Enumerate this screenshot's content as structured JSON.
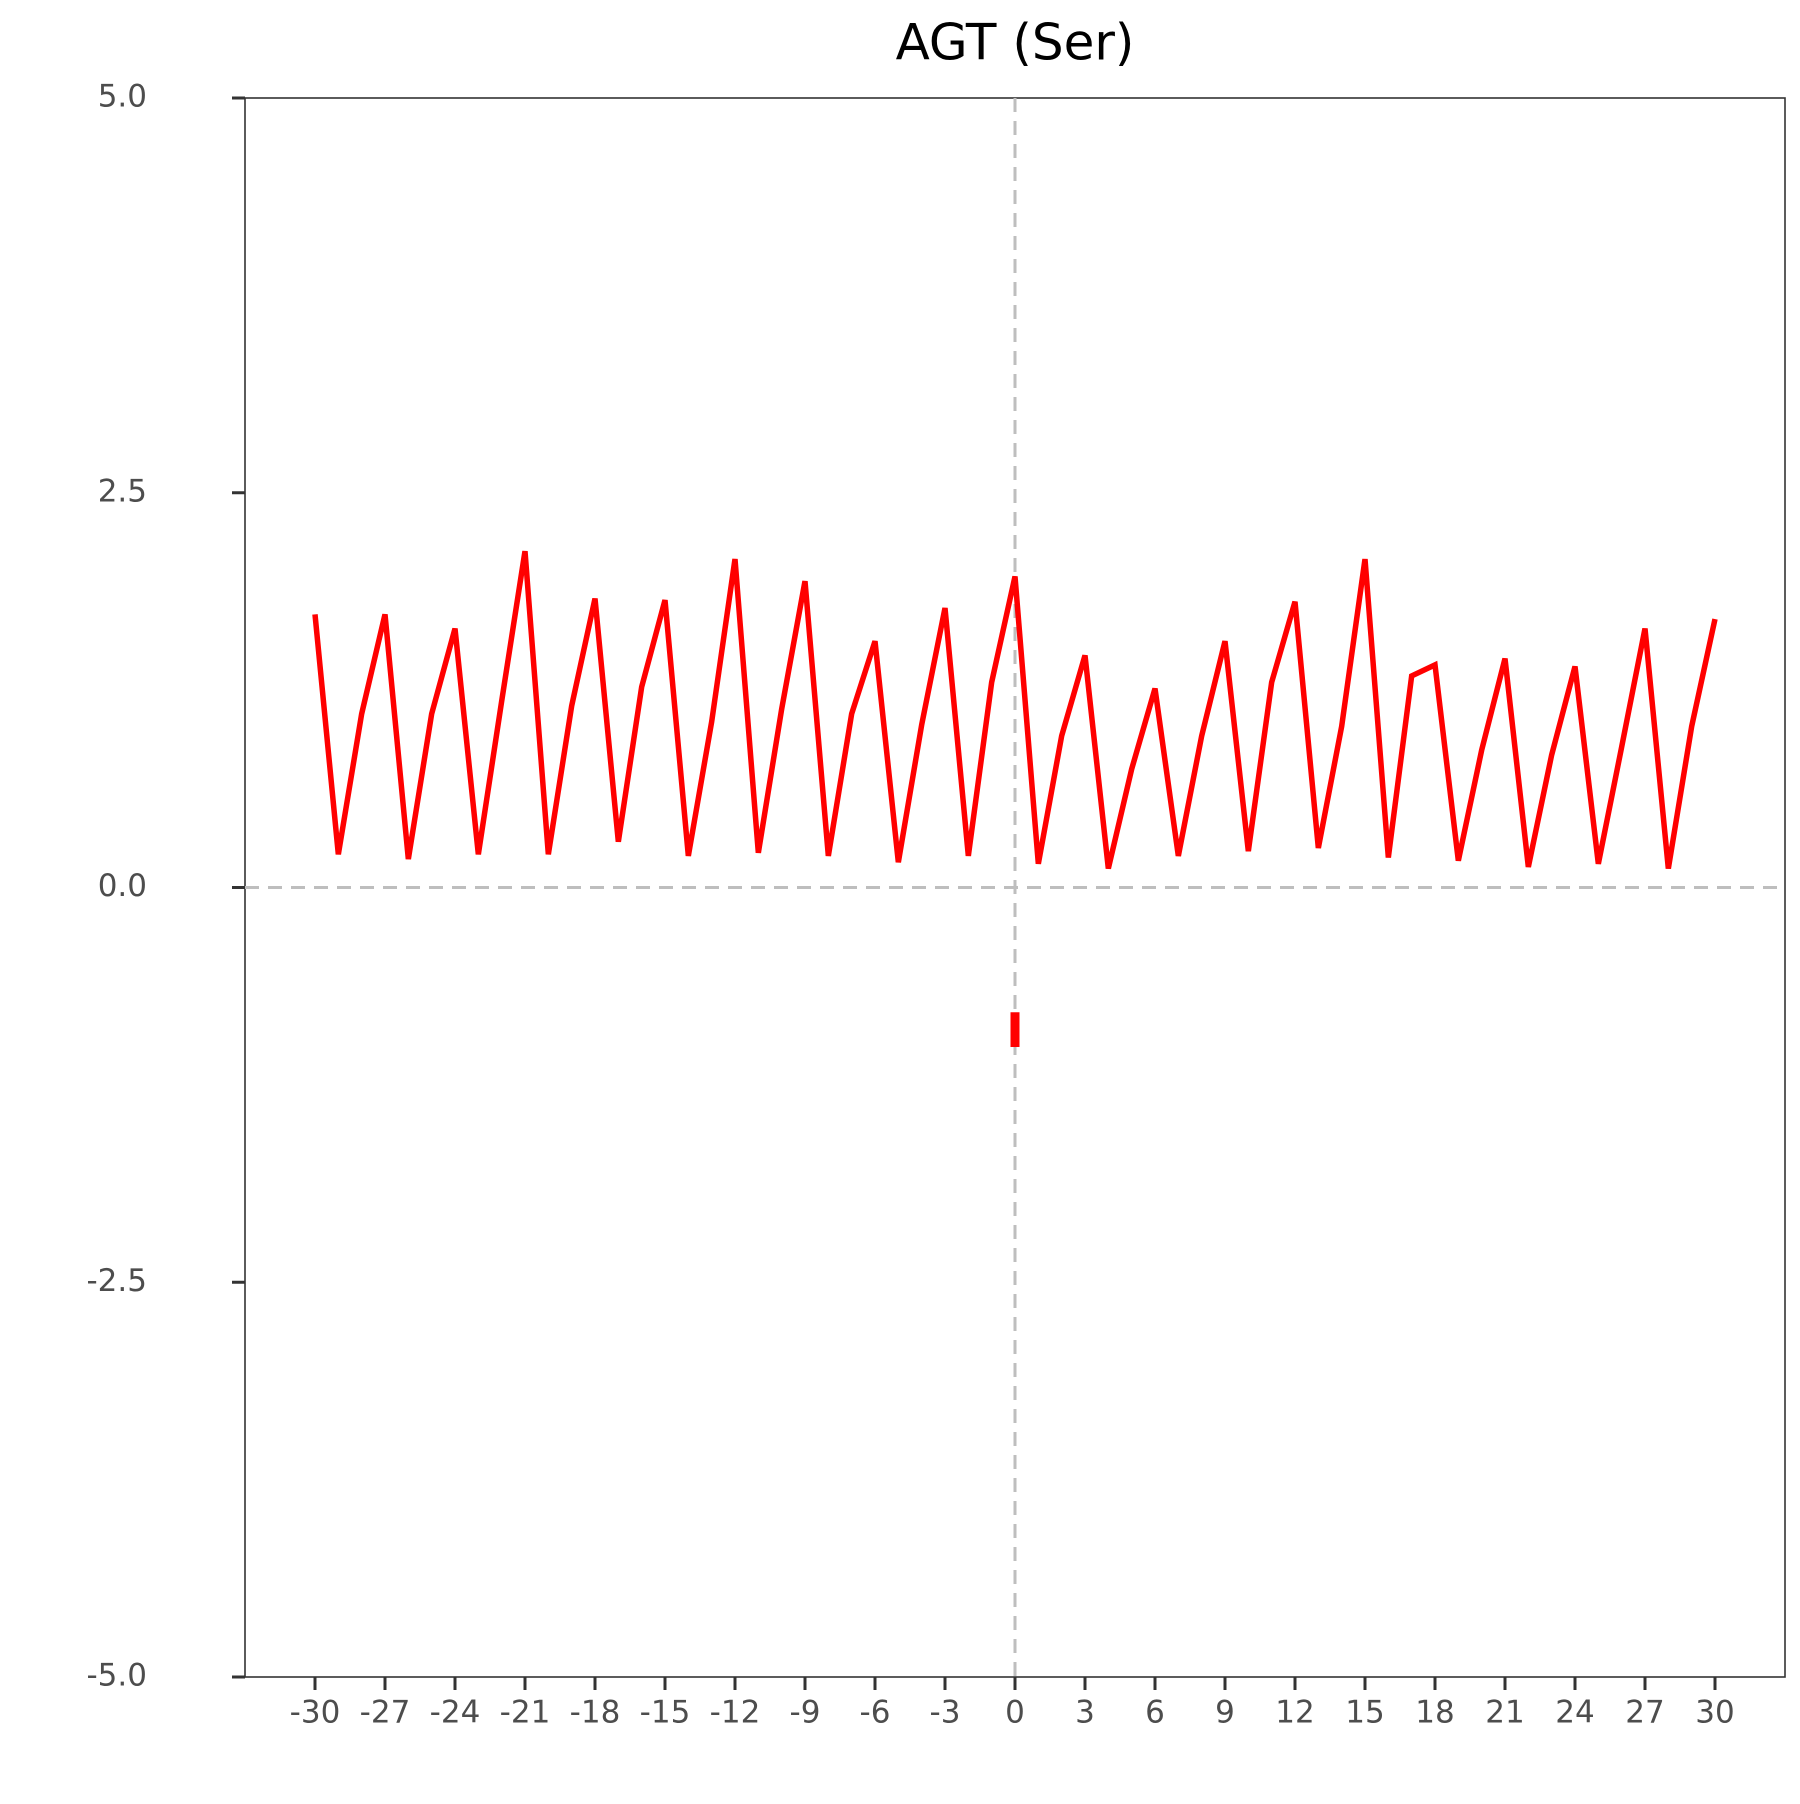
{
  "chart_data": {
    "type": "line",
    "title": "AGT (Ser)",
    "series": [
      {
        "color": "#ff0000",
        "x": [
          -30,
          -29,
          -28,
          -27,
          -26,
          -25,
          -24,
          -23,
          -22,
          -21,
          -20,
          -19,
          -18,
          -17,
          -16,
          -15,
          -14,
          -13,
          -12,
          -11,
          -10,
          -9,
          -8,
          -7,
          -6,
          -5,
          -4,
          -3,
          -2,
          -1,
          0,
          1,
          2,
          3,
          4,
          5,
          6,
          7,
          8,
          9,
          10,
          11,
          12,
          13,
          14,
          15,
          16,
          17,
          18,
          19,
          20,
          21,
          22,
          23,
          24,
          25,
          26,
          27,
          28,
          29,
          30
        ],
        "values": [
          1.73,
          0.21,
          1.1,
          1.73,
          0.18,
          1.1,
          1.64,
          0.21,
          1.18,
          2.13,
          0.21,
          1.15,
          1.83,
          0.29,
          1.27,
          1.82,
          0.2,
          1.05,
          2.08,
          0.22,
          1.13,
          1.94,
          0.2,
          1.1,
          1.56,
          0.16,
          1.03,
          1.77,
          0.2,
          1.3,
          1.97,
          0.15,
          0.96,
          1.47,
          0.12,
          0.75,
          1.26,
          0.2,
          0.96,
          1.56,
          0.23,
          1.3,
          1.81,
          0.25,
          1.02,
          2.08,
          0.19,
          1.34,
          1.41,
          0.17,
          0.87,
          1.45,
          0.13,
          0.84,
          1.4,
          0.15,
          0.89,
          1.64,
          0.12,
          1.02,
          1.7
        ]
      },
      {
        "color": "#ff0000",
        "x": [
          0,
          0
        ],
        "values": [
          -0.79,
          -1.01
        ]
      }
    ],
    "xlim": [
      -33,
      33
    ],
    "xticks": [
      -30,
      -27,
      -24,
      -21,
      -18,
      -15,
      -12,
      -9,
      -6,
      -3,
      0,
      3,
      6,
      9,
      12,
      15,
      18,
      21,
      24,
      27,
      30
    ],
    "ylim": [
      -5,
      5
    ],
    "yticks": [
      {
        "value": -5,
        "label": "-5.0"
      },
      -2.5,
      {
        "value": 0,
        "label": "0.0"
      },
      2.5,
      {
        "value": 5,
        "label": "5.0"
      }
    ],
    "reference_lines": {
      "x": 0,
      "y": 0,
      "color": "#bebebe"
    }
  }
}
